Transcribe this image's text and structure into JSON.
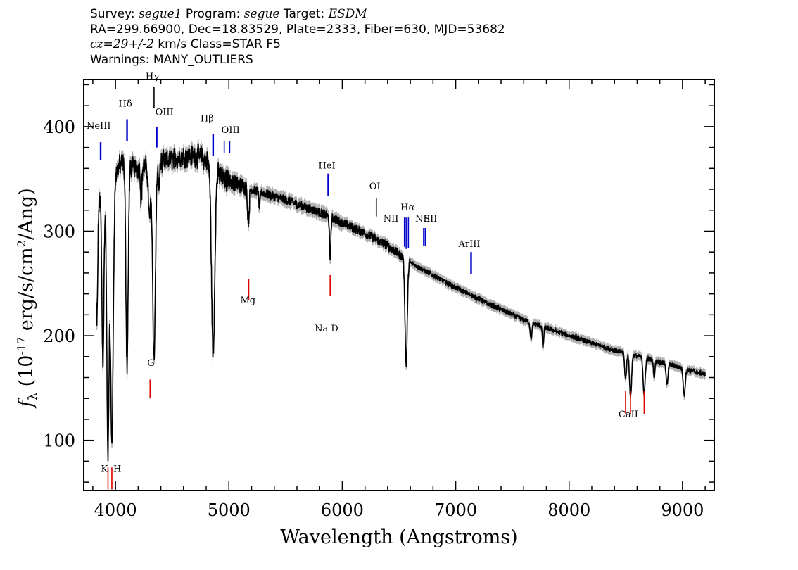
{
  "header": {
    "line1": {
      "survey_label": "Survey: ",
      "survey": "segue1",
      "program_label": " Program: ",
      "program": "segue",
      "target_label": " Target: ",
      "target": "ESDM"
    },
    "line2": "RA=299.66900, Dec=18.83529, Plate=2333, Fiber=630, MJD=53682",
    "line3": {
      "cz": "cz=29+/-2",
      "rest": " km/s Class=STAR F5"
    },
    "line4": "Warnings: MANY_OUTLIERS"
  },
  "chart_data": {
    "type": "line",
    "title": "",
    "xlabel": "Wavelength (Angstroms)",
    "ylabel_main": "f",
    "ylabel_sub": "λ",
    "ylabel_units_pre": " (10",
    "ylabel_exp1": "-17",
    "ylabel_units_mid": " erg/s/cm",
    "ylabel_exp2": "2",
    "ylabel_units_post": "/Ang)",
    "xlim": [
      3720,
      9280
    ],
    "ylim": [
      52,
      445
    ],
    "x_ticks": [
      4000,
      5000,
      6000,
      7000,
      8000,
      9000
    ],
    "x_tick_labels": [
      "4000",
      "5000",
      "6000",
      "7000",
      "8000",
      "9000"
    ],
    "y_ticks": [
      100,
      200,
      300,
      400
    ],
    "y_tick_labels": [
      "100",
      "200",
      "300",
      "400"
    ],
    "colors": {
      "spectrum": "#000000",
      "error": "#b0b0b0",
      "emission": "#0000cc",
      "absorption": "#dd0000"
    },
    "continuum": [
      [
        3850,
        330
      ],
      [
        3950,
        345
      ],
      [
        4050,
        365
      ],
      [
        4200,
        360
      ],
      [
        4400,
        365
      ],
      [
        4600,
        372
      ],
      [
        4750,
        372
      ],
      [
        4850,
        362
      ],
      [
        4950,
        350
      ],
      [
        5200,
        340
      ],
      [
        5500,
        330
      ],
      [
        5800,
        318
      ],
      [
        6000,
        308
      ],
      [
        6200,
        298
      ],
      [
        6400,
        286
      ],
      [
        6600,
        270
      ],
      [
        6800,
        258
      ],
      [
        7000,
        246
      ],
      [
        7300,
        230
      ],
      [
        7600,
        215
      ],
      [
        8000,
        200
      ],
      [
        8400,
        186
      ],
      [
        8800,
        175
      ],
      [
        9200,
        163
      ]
    ],
    "absorption_features": [
      {
        "x": 3835,
        "depth": 120,
        "w": 8
      },
      {
        "x": 3889,
        "depth": 160,
        "w": 9
      },
      {
        "x": 3933,
        "depth": 250,
        "w": 10
      },
      {
        "x": 3968,
        "depth": 250,
        "w": 12
      },
      {
        "x": 4102,
        "depth": 190,
        "w": 10
      },
      {
        "x": 4227,
        "depth": 30,
        "w": 6
      },
      {
        "x": 4300,
        "depth": 50,
        "w": 10
      },
      {
        "x": 4340,
        "depth": 185,
        "w": 12
      },
      {
        "x": 4383,
        "depth": 25,
        "w": 5
      },
      {
        "x": 4861,
        "depth": 180,
        "w": 14
      },
      {
        "x": 5172,
        "depth": 30,
        "w": 8
      },
      {
        "x": 5270,
        "depth": 15,
        "w": 6
      },
      {
        "x": 5893,
        "depth": 40,
        "w": 6
      },
      {
        "x": 6563,
        "depth": 100,
        "w": 10
      },
      {
        "x": 7665,
        "depth": 15,
        "w": 8
      },
      {
        "x": 7770,
        "depth": 20,
        "w": 6
      },
      {
        "x": 8498,
        "depth": 25,
        "w": 8
      },
      {
        "x": 8542,
        "depth": 40,
        "w": 9
      },
      {
        "x": 8662,
        "depth": 35,
        "w": 9
      },
      {
        "x": 8750,
        "depth": 15,
        "w": 7
      },
      {
        "x": 8863,
        "depth": 20,
        "w": 8
      },
      {
        "x": 9015,
        "depth": 25,
        "w": 9
      }
    ],
    "emission_lines": [
      {
        "label": "NeIII",
        "x": 3869,
        "y_text": 398,
        "y1": 385,
        "y2": 368,
        "label_dx": -20,
        "thick": true
      },
      {
        "label": "Hδ",
        "x": 4102,
        "y_text": 419,
        "y1": 407,
        "y2": 386,
        "label_dx": -12,
        "thick": true
      },
      {
        "label": "Hγ",
        "x": 4340,
        "y_text": 445,
        "y1": 438,
        "y2": 418,
        "label_dx": -12,
        "thick": false,
        "color": "#000000"
      },
      {
        "label": "OIII",
        "x": 4363,
        "y_text": 411,
        "y1": 400,
        "y2": 380,
        "label_dx": -2,
        "thick": true
      },
      {
        "label": "Hβ",
        "x": 4861,
        "y_text": 405,
        "y1": 393,
        "y2": 372,
        "label_dx": -18,
        "thick": true
      },
      {
        "label": "OIII",
        "x": 4959,
        "y_text": 394,
        "y1": 386,
        "y2": 375,
        "label_dx": -4,
        "thick": false
      },
      {
        "label": "",
        "x": 5007,
        "y_text": 0,
        "y1": 386,
        "y2": 375,
        "label_dx": 0,
        "thick": false
      },
      {
        "label": "HeI",
        "x": 5876,
        "y_text": 360,
        "y1": 355,
        "y2": 334,
        "label_dx": -14,
        "thick": true
      },
      {
        "label": "OI",
        "x": 6300,
        "y_text": 340,
        "y1": 332,
        "y2": 314,
        "label_dx": -10,
        "thick": false,
        "color": "#000000"
      },
      {
        "label": "NII",
        "x": 6548,
        "y_text": 309,
        "y1": 313,
        "y2": 285,
        "label_dx": -30,
        "thick": false
      },
      {
        "label": "Hα",
        "x": 6563,
        "y_text": 320,
        "y1": 313,
        "y2": 283,
        "label_dx": -8,
        "thick": false
      },
      {
        "label": "",
        "x": 6583,
        "y_text": 0,
        "y1": 313,
        "y2": 284,
        "label_dx": 0,
        "thick": false
      },
      {
        "label": "NII",
        "x": 6717,
        "y_text": 309,
        "y1": 303,
        "y2": 286,
        "label_dx": -12,
        "thick": false
      },
      {
        "label": "SII",
        "x": 6731,
        "y_text": 309,
        "y1": 303,
        "y2": 286,
        "label_dx": -2,
        "thick": false
      },
      {
        "label": "ArIII",
        "x": 7136,
        "y_text": 285,
        "y1": 280,
        "y2": 259,
        "label_dx": -18,
        "thick": true
      }
    ],
    "absorption_lines": [
      {
        "label": "K",
        "x": 3934,
        "y_text": 70,
        "y1": 53,
        "y2": 74,
        "label_dx": -10,
        "group": "KH"
      },
      {
        "label": "H",
        "x": 3968,
        "y_text": 70,
        "y1": 53,
        "y2": 74,
        "label_dx": 2,
        "group": "KH"
      },
      {
        "label": "G",
        "x": 4305,
        "y_text": 171,
        "y1": 158,
        "y2": 140,
        "label_dx": -4
      },
      {
        "label": "Mg",
        "x": 5175,
        "y_text": 231,
        "y1": 254,
        "y2": 234,
        "label_dx": -12
      },
      {
        "label": "Na D",
        "x": 5893,
        "y_text": 204,
        "y1": 258,
        "y2": 238,
        "label_dx": -22
      },
      {
        "label": "CaII",
        "x": 8498,
        "y_text": 122,
        "y1": 147,
        "y2": 125,
        "label_dx": -10
      },
      {
        "label": "",
        "x": 8542,
        "y_text": 0,
        "y1": 147,
        "y2": 125,
        "label_dx": 0
      },
      {
        "label": "",
        "x": 8662,
        "y_text": 0,
        "y1": 147,
        "y2": 125,
        "label_dx": 0
      }
    ]
  }
}
